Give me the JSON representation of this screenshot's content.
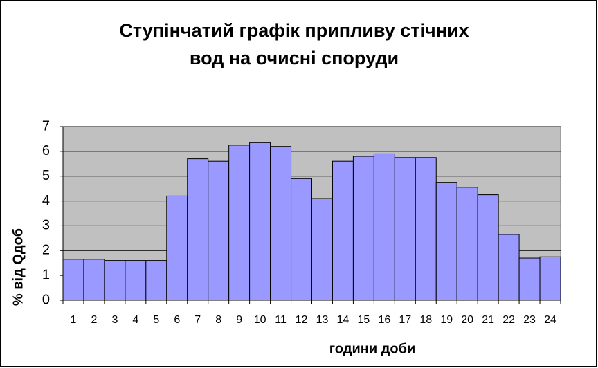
{
  "chart_data": {
    "type": "bar",
    "title": [
      "Ступінчатий графік припливу стічних",
      "вод на очисні споруди"
    ],
    "x_label": "години доби",
    "y_label": "% від Qдоб",
    "categories": [
      "1",
      "2",
      "3",
      "4",
      "5",
      "6",
      "7",
      "8",
      "9",
      "10",
      "11",
      "12",
      "13",
      "14",
      "15",
      "16",
      "17",
      "18",
      "19",
      "20",
      "21",
      "22",
      "23",
      "24"
    ],
    "values": [
      1.65,
      1.65,
      1.6,
      1.6,
      1.6,
      4.2,
      5.7,
      5.6,
      6.25,
      6.35,
      6.2,
      4.9,
      4.1,
      5.6,
      5.8,
      5.9,
      5.75,
      5.75,
      4.75,
      4.55,
      4.25,
      2.65,
      1.7,
      1.75
    ],
    "color": "#9999ff",
    "ylim": [
      0,
      7
    ],
    "yticks": [
      0,
      1,
      2,
      3,
      4,
      5,
      6,
      7
    ],
    "grid": true
  }
}
